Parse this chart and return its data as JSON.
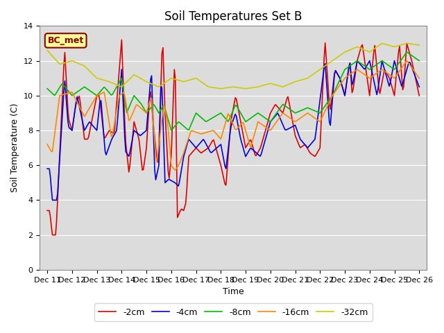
{
  "title": "Soil Temperatures Set B",
  "xlabel": "Time",
  "ylabel": "Soil Temperature (C)",
  "ylim": [
    0,
    14
  ],
  "annotation": "BC_met",
  "legend_labels": [
    "-2cm",
    "-4cm",
    "-8cm",
    "-16cm",
    "-32cm"
  ],
  "colors": [
    "#DD0000",
    "#0000DD",
    "#00BB00",
    "#FF8800",
    "#CCCC00"
  ],
  "background_color": "#DCDCDC",
  "grid_color": "#FFFFFF",
  "xtick_labels": [
    "Dec 11",
    "Dec 12",
    "Dec 13",
    "Dec 14",
    "Dec 15",
    "Dec 16",
    "Dec 17",
    "Dec 18",
    "Dec 19",
    "Dec 20",
    "Dec 21",
    "Dec 22",
    "Dec 23",
    "Dec 24",
    "Dec 25",
    "Dec 26"
  ],
  "xtick_positions": [
    0,
    1,
    2,
    3,
    4,
    5,
    6,
    7,
    8,
    9,
    10,
    11,
    12,
    13,
    14,
    15
  ]
}
